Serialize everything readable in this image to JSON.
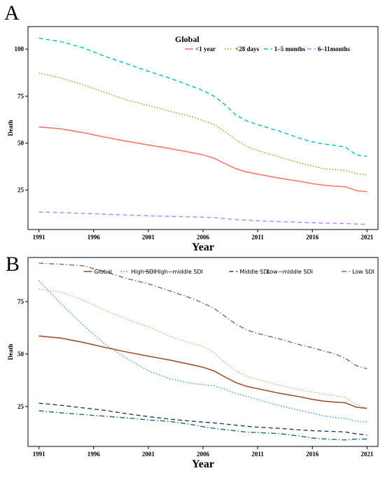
{
  "chart_data": [
    {
      "panel": "A",
      "type": "line",
      "title": "Global",
      "xlabel": "Year",
      "ylabel": "Death",
      "xlim": [
        1990,
        2022
      ],
      "ylim": [
        4,
        112
      ],
      "xticks": [
        1991,
        1996,
        2001,
        2006,
        2011,
        2016,
        2021
      ],
      "yticks": [
        25,
        50,
        75,
        100
      ],
      "legend_position": "top-right",
      "grid": false,
      "x": [
        1991,
        1993,
        1995,
        1997,
        1999,
        2001,
        2003,
        2005,
        2006,
        2007,
        2008,
        2009,
        2010,
        2011,
        2013,
        2015,
        2016,
        2017,
        2018,
        2019,
        2020,
        2021
      ],
      "series": [
        {
          "name": "<1 year",
          "color": "#F8766D",
          "dash": "solid",
          "values": [
            58.6,
            57.6,
            55.6,
            53.2,
            51.0,
            49.0,
            47.1,
            44.9,
            43.7,
            42.0,
            39.1,
            36.4,
            34.6,
            33.5,
            31.3,
            29.5,
            28.4,
            27.6,
            27.1,
            26.8,
            24.7,
            24.1
          ]
        },
        {
          "name": "<28 days",
          "color": "#8E9F00",
          "dash": "dotted",
          "values": [
            87.3,
            84.7,
            81.1,
            77.0,
            73.0,
            70.0,
            66.9,
            64.0,
            62.0,
            59.9,
            56.1,
            51.7,
            48.3,
            46.0,
            42.6,
            39.2,
            37.9,
            36.4,
            35.9,
            35.5,
            33.8,
            33.1
          ]
        },
        {
          "name": "1–5 months",
          "color": "#00BFC4",
          "dash": "dashed",
          "values": [
            105.8,
            104.0,
            100.8,
            96.3,
            92.3,
            88.2,
            84.5,
            80.2,
            78.0,
            75.0,
            70.5,
            65.0,
            61.8,
            59.8,
            56.3,
            52.3,
            50.7,
            49.5,
            48.8,
            48.0,
            43.7,
            42.9
          ]
        },
        {
          "name": "6–11months",
          "color": "#C77CFF",
          "dash": "dashed",
          "values": [
            13.3,
            13.0,
            12.6,
            12.2,
            11.7,
            11.3,
            11.0,
            10.7,
            10.5,
            10.3,
            9.8,
            9.3,
            8.9,
            8.6,
            8.2,
            7.8,
            7.6,
            7.4,
            7.3,
            7.2,
            6.9,
            6.8
          ]
        }
      ]
    },
    {
      "panel": "B",
      "type": "line",
      "title": "",
      "xlabel": "Year",
      "ylabel": "Death",
      "xlim": [
        1990,
        2022
      ],
      "ylim": [
        6,
        96
      ],
      "xticks": [
        1991,
        1996,
        2001,
        2006,
        2011,
        2016,
        2021
      ],
      "yticks": [
        25,
        50,
        75
      ],
      "legend_position": "top",
      "grid": false,
      "x": [
        1991,
        1993,
        1995,
        1997,
        1999,
        2001,
        2003,
        2005,
        2006,
        2007,
        2008,
        2009,
        2010,
        2011,
        2013,
        2015,
        2016,
        2017,
        2018,
        2019,
        2020,
        2021
      ],
      "series": [
        {
          "name": "Global",
          "color": "#A0522D",
          "dash": "solid",
          "values": [
            58.6,
            57.6,
            55.6,
            53.2,
            51.0,
            49.0,
            47.1,
            44.9,
            43.7,
            42.0,
            39.1,
            36.4,
            34.6,
            33.5,
            31.3,
            29.5,
            28.4,
            27.6,
            27.1,
            26.8,
            24.7,
            24.1
          ]
        },
        {
          "name": "High SDI",
          "color": "#3C9AD6",
          "dash": "dotted",
          "values": [
            85.0,
            74.0,
            64.0,
            54.8,
            48.0,
            42.0,
            38.2,
            36.0,
            35.4,
            34.8,
            33.3,
            31.2,
            29.8,
            28.3,
            25.4,
            23.0,
            21.8,
            20.6,
            19.8,
            19.3,
            18.0,
            17.7
          ]
        },
        {
          "name": "High−middle SDI",
          "color": "#1F6B73",
          "dash": "dashdot",
          "values": [
            23.0,
            22.0,
            21.2,
            20.4,
            19.6,
            18.6,
            17.9,
            16.4,
            15.4,
            14.6,
            14.0,
            13.4,
            12.8,
            12.6,
            12.1,
            10.8,
            10.0,
            9.6,
            9.3,
            9.1,
            9.5,
            9.5
          ]
        },
        {
          "name": "Middle SDI",
          "color": "#2B3A67",
          "dash": "dashed",
          "values": [
            26.6,
            25.6,
            24.4,
            23.2,
            21.6,
            20.2,
            19.0,
            18.0,
            17.6,
            17.2,
            16.7,
            16.1,
            15.6,
            15.2,
            14.6,
            13.8,
            13.5,
            13.3,
            13.1,
            12.9,
            12.0,
            11.4
          ]
        },
        {
          "name": "Low−middle SDI",
          "color": "#E8A16A",
          "dash": "dotted",
          "values": [
            81.0,
            79.6,
            75.8,
            71.0,
            66.6,
            63.0,
            58.4,
            55.0,
            53.6,
            50.8,
            46.0,
            42.0,
            39.5,
            37.8,
            35.2,
            32.8,
            31.9,
            31.0,
            30.2,
            29.4,
            26.0,
            24.2
          ]
        },
        {
          "name": "Low SDI",
          "color": "#6E6E7E",
          "dash": "dashdot",
          "values": [
            93.3,
            92.8,
            92.1,
            89.3,
            86.0,
            83.5,
            80.0,
            76.5,
            74.3,
            71.8,
            68.0,
            64.3,
            61.5,
            59.8,
            57.2,
            54.2,
            53.0,
            51.5,
            50.2,
            48.0,
            44.5,
            43.0
          ]
        }
      ]
    }
  ],
  "panels": {
    "a_letter": "A",
    "b_letter": "B"
  }
}
